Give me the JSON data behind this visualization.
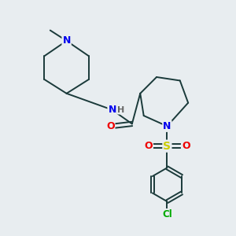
{
  "bg_color": "#e8edf0",
  "atom_colors": {
    "N": "#0000ee",
    "O": "#ee0000",
    "S": "#cccc00",
    "Cl": "#00aa00",
    "C": "#1a3a3a",
    "H": "#666666"
  },
  "bond_color": "#1a3a3a",
  "lw": 1.4
}
